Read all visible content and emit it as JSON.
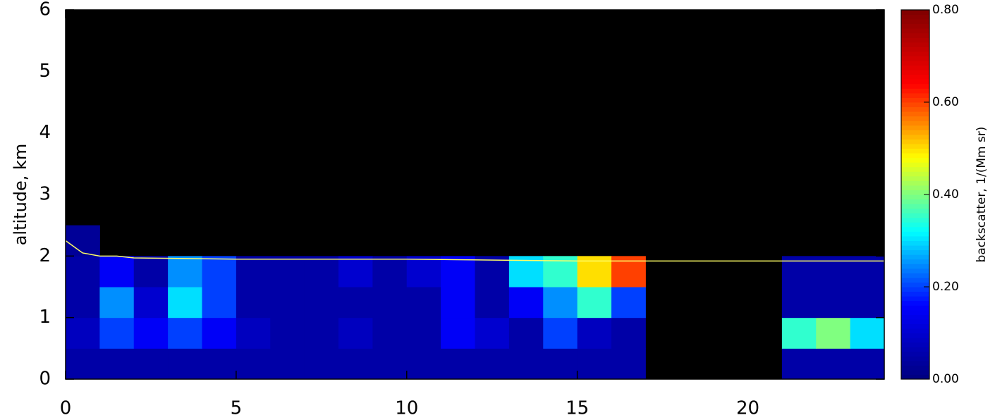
{
  "chart_data": {
    "type": "heatmap",
    "ylabel": "altitude, km",
    "colorbar_label": "backscatter, 1/(Mm sr)",
    "x_bins": [
      0,
      1,
      2,
      3,
      4,
      5,
      6,
      7,
      8,
      9,
      10,
      11,
      12,
      13,
      14,
      15,
      16,
      17,
      18,
      19,
      20,
      21,
      22,
      23,
      24
    ],
    "y_bins": [
      0,
      0.5,
      1,
      1.5,
      2,
      2.5,
      6
    ],
    "z": [
      [
        0.05,
        0.05,
        0.05,
        0.05,
        0.05,
        0.05,
        0.05,
        0.05,
        0.05,
        0.05,
        0.05,
        0.05,
        0.05,
        0.05,
        0.05,
        0.05,
        0.05,
        null,
        null,
        null,
        null,
        0.05,
        0.05,
        0.05
      ],
      [
        0.08,
        0.2,
        0.15,
        0.2,
        0.15,
        0.08,
        0.05,
        0.05,
        0.08,
        0.05,
        0.05,
        0.15,
        0.1,
        0.05,
        0.2,
        0.08,
        0.05,
        null,
        null,
        null,
        null,
        0.35,
        0.4,
        0.3
      ],
      [
        0.05,
        0.25,
        0.1,
        0.3,
        0.2,
        0.05,
        0.05,
        0.05,
        0.05,
        0.05,
        0.05,
        0.15,
        0.05,
        0.15,
        0.25,
        0.35,
        0.2,
        null,
        null,
        null,
        null,
        0.05,
        0.05,
        0.05
      ],
      [
        0.05,
        0.15,
        0.05,
        0.25,
        0.2,
        0.05,
        0.05,
        0.05,
        0.1,
        0.05,
        0.1,
        0.15,
        0.05,
        0.3,
        0.35,
        0.5,
        0.6,
        null,
        null,
        null,
        null,
        0.05,
        0.05,
        0.05
      ],
      [
        0.03,
        null,
        null,
        null,
        null,
        null,
        null,
        null,
        null,
        null,
        null,
        null,
        null,
        null,
        null,
        null,
        null,
        null,
        null,
        null,
        null,
        null,
        null,
        null
      ],
      [
        null,
        null,
        null,
        null,
        null,
        null,
        null,
        null,
        null,
        null,
        null,
        null,
        null,
        null,
        null,
        null,
        null,
        null,
        null,
        null,
        null,
        null,
        null,
        null
      ]
    ],
    "colorscale": [
      "#00007f",
      "#0000ff",
      "#00ffff",
      "#ffff00",
      "#ff0000",
      "#7f0000"
    ],
    "null_color": "#000000",
    "zlim": [
      0,
      0.8
    ],
    "zticks": [
      {
        "value": 0,
        "label": "0.00"
      },
      {
        "value": 0.2,
        "label": "0.20"
      },
      {
        "value": 0.4,
        "label": "0.40"
      },
      {
        "value": 0.6,
        "label": "0.60"
      },
      {
        "value": 0.8,
        "label": "0.80"
      }
    ],
    "xlim": [
      0,
      24
    ],
    "xticks": [
      0,
      5,
      10,
      15,
      20
    ],
    "ylim": [
      0,
      6
    ],
    "yticks": [
      0,
      1,
      2,
      3,
      4,
      5,
      6
    ],
    "line": {
      "color": "#ffff66",
      "x": [
        0,
        0.5,
        1,
        1.5,
        2,
        5,
        10,
        15,
        24
      ],
      "y": [
        2.25,
        2.05,
        2.0,
        2.0,
        1.97,
        1.95,
        1.95,
        1.92,
        1.92
      ]
    }
  }
}
